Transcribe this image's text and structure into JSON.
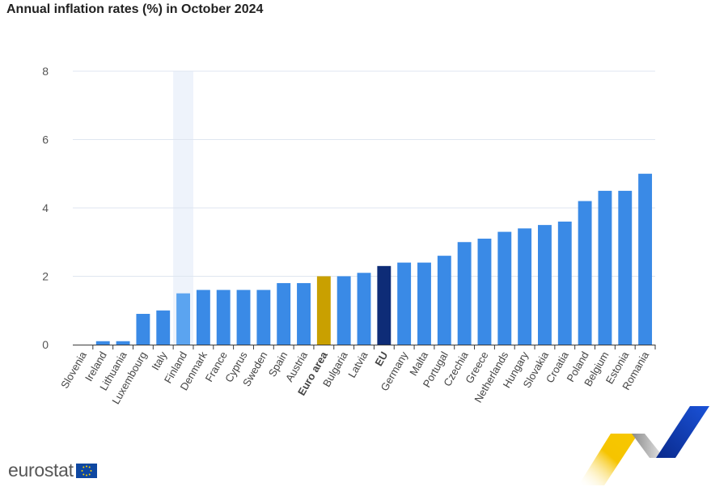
{
  "header": {
    "title": "Annual inflation rates (%) in October 2024"
  },
  "brand": {
    "logo_text": "eurostat"
  },
  "colors": {
    "bar": "#3a8ae6",
    "bar_highlight": "#5ba4f0",
    "euro_area": "#c9a000",
    "eu": "#0e2c77",
    "grid": "#dfe6f0",
    "hover_band": "#eef3fb"
  },
  "chart_data": {
    "type": "bar",
    "title": "Annual inflation rates (%) in October 2024",
    "xlabel": "",
    "ylabel": "",
    "ylim": [
      0,
      8
    ],
    "yticks": [
      0,
      2,
      4,
      6,
      8
    ],
    "grid": true,
    "highlighted_category": "Finland",
    "bold_categories": [
      "Euro area",
      "EU"
    ],
    "categories": [
      "Slovenia",
      "Ireland",
      "Lithuania",
      "Luxembourg",
      "Italy",
      "Finland",
      "Denmark",
      "France",
      "Cyprus",
      "Sweden",
      "Spain",
      "Austria",
      "Euro area",
      "Bulgaria",
      "Latvia",
      "EU",
      "Germany",
      "Malta",
      "Portugal",
      "Czechia",
      "Greece",
      "Netherlands",
      "Hungary",
      "Slovakia",
      "Croatia",
      "Poland",
      "Belgium",
      "Estonia",
      "Romania"
    ],
    "values": [
      0.0,
      0.1,
      0.1,
      0.9,
      1.0,
      1.5,
      1.6,
      1.6,
      1.6,
      1.6,
      1.8,
      1.8,
      2.0,
      2.0,
      2.1,
      2.3,
      2.4,
      2.4,
      2.6,
      3.0,
      3.1,
      3.3,
      3.4,
      3.5,
      3.6,
      4.2,
      4.5,
      4.5,
      5.0
    ]
  }
}
